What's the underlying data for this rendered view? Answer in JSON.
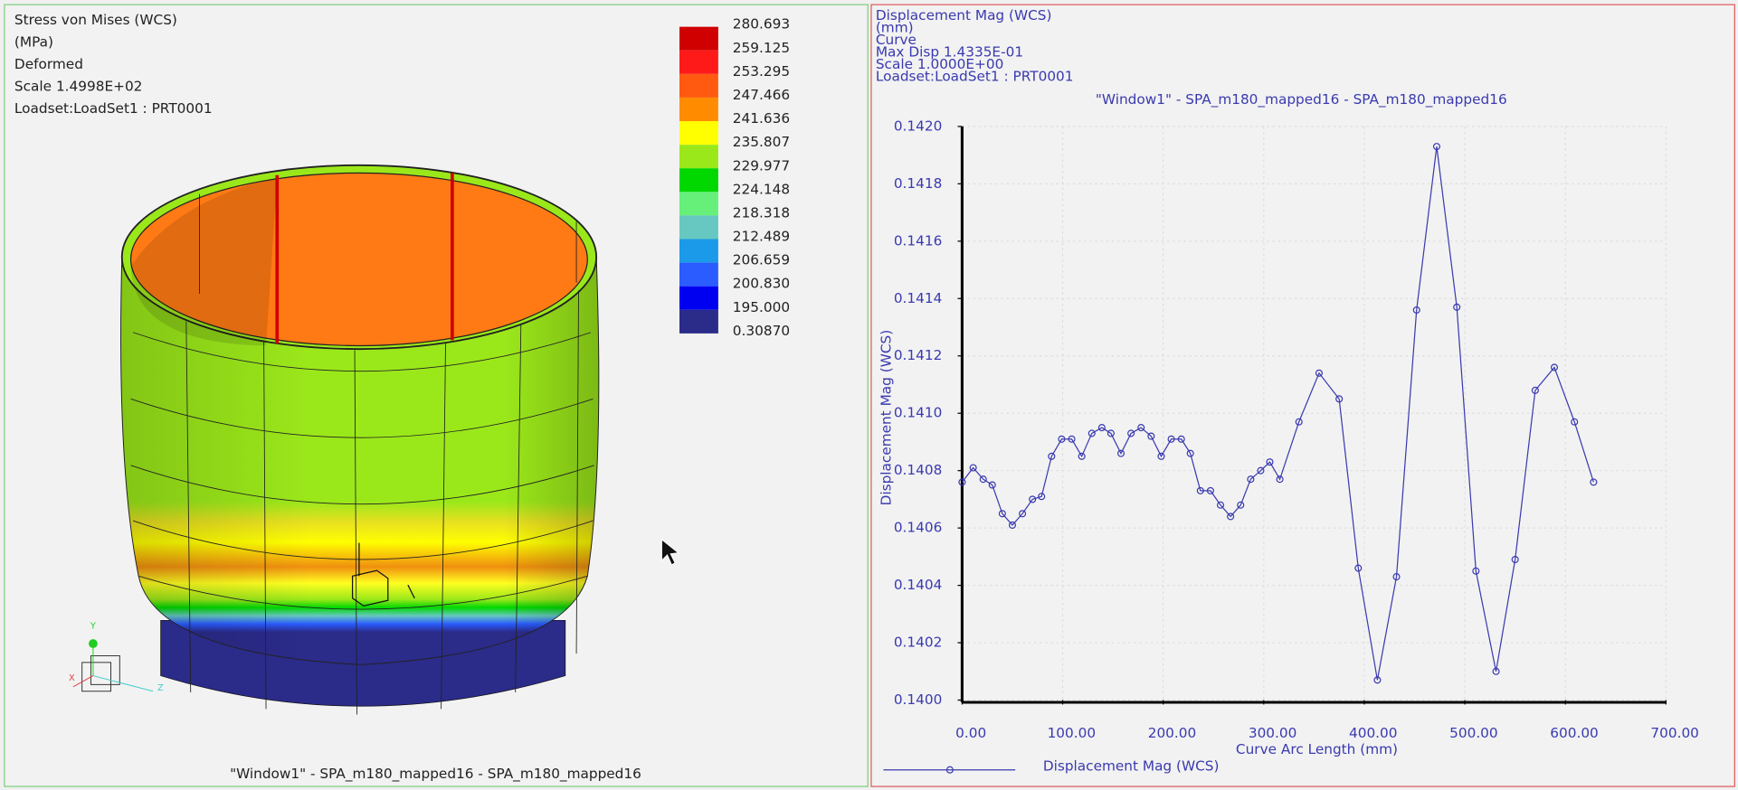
{
  "left_panel": {
    "info": [
      "Stress von Mises (WCS)",
      "(MPa)",
      "Deformed",
      "Scale  1.4998E+02",
      "Loadset:LoadSet1 :  PRT0001"
    ],
    "legend": {
      "labels": [
        "280.693",
        "259.125",
        "253.295",
        "247.466",
        "241.636",
        "235.807",
        "229.977",
        "224.148",
        "218.318",
        "212.489",
        "206.659",
        "200.830",
        "195.000",
        "0.30870"
      ],
      "colors": [
        "#d00000",
        "#ff1a1a",
        "#ff5a10",
        "#ff8c00",
        "#ffff00",
        "#9be81a",
        "#00d800",
        "#66f07a",
        "#66c8c0",
        "#1a9ae8",
        "#2a5cff",
        "#0000f0",
        "#2b2b8a"
      ]
    },
    "triad": [
      "Y",
      "X",
      "Z"
    ],
    "footer": "\"Window1\" - SPA_m180_mapped16 - SPA_m180_mapped16"
  },
  "right_panel": {
    "info": [
      "Displacement Mag (WCS)",
      "(mm)",
      "Curve",
      "Max Disp  1.4335E-01",
      "Scale  1.0000E+00",
      "Loadset:LoadSet1 :  PRT0001"
    ]
  },
  "chart_data": {
    "type": "line",
    "title": "\"Window1\" - SPA_m180_mapped16 - SPA_m180_mapped16",
    "x_label": "Curve Arc Length (mm)",
    "y_label": "Displacement Mag (WCS)",
    "x": [
      0,
      11,
      21,
      30,
      40,
      50,
      60,
      70,
      79,
      89,
      99,
      109,
      119,
      129,
      139,
      148,
      158,
      168,
      178,
      188,
      198,
      208,
      218,
      227,
      237,
      247,
      257,
      267,
      277,
      287,
      297,
      306,
      316,
      335,
      355,
      375,
      394,
      413,
      432,
      452,
      472,
      492,
      511,
      531,
      550,
      570,
      589,
      609,
      628
    ],
    "series": [
      {
        "name": "Displacement Mag (WCS)",
        "color": "#3a3ab0",
        "values": [
          0.14076,
          0.14081,
          0.14077,
          0.14075,
          0.14065,
          0.14061,
          0.14065,
          0.1407,
          0.14071,
          0.14085,
          0.14091,
          0.14091,
          0.14085,
          0.14093,
          0.14095,
          0.14093,
          0.14086,
          0.14093,
          0.14095,
          0.14092,
          0.14085,
          0.14091,
          0.14091,
          0.14086,
          0.14073,
          0.14073,
          0.14068,
          0.14064,
          0.14068,
          0.14077,
          0.1408,
          0.14083,
          0.14077,
          0.14097,
          0.14114,
          0.14105,
          0.14046,
          0.14007,
          0.14043,
          0.14136,
          0.14193,
          0.14137,
          0.14045,
          0.1401,
          0.14049,
          0.14108,
          0.14116,
          0.14097,
          0.14076
        ]
      }
    ],
    "xlim": [
      0,
      700
    ],
    "xticks": [
      {
        "value": 0,
        "label": "0.00"
      },
      {
        "value": 100,
        "label": "100.00"
      },
      {
        "value": 200,
        "label": "200.00"
      },
      {
        "value": 300,
        "label": "300.00"
      },
      {
        "value": 400,
        "label": "400.00"
      },
      {
        "value": 500,
        "label": "500.00"
      },
      {
        "value": 600,
        "label": "600.00"
      },
      {
        "value": 700,
        "label": "700.00"
      }
    ],
    "ylim": [
      0.14,
      0.142
    ],
    "yticks": [
      {
        "value": 0.14,
        "label": "0.1400"
      },
      {
        "value": 0.1402,
        "label": "0.1402"
      },
      {
        "value": 0.1404,
        "label": "0.1404"
      },
      {
        "value": 0.1406,
        "label": "0.1406"
      },
      {
        "value": 0.1408,
        "label": "0.1408"
      },
      {
        "value": 0.141,
        "label": "0.1410"
      },
      {
        "value": 0.1412,
        "label": "0.1412"
      },
      {
        "value": 0.1414,
        "label": "0.1414"
      },
      {
        "value": 0.1416,
        "label": "0.1416"
      },
      {
        "value": 0.1418,
        "label": "0.1418"
      },
      {
        "value": 0.142,
        "label": "0.1420"
      }
    ],
    "grid": true
  }
}
